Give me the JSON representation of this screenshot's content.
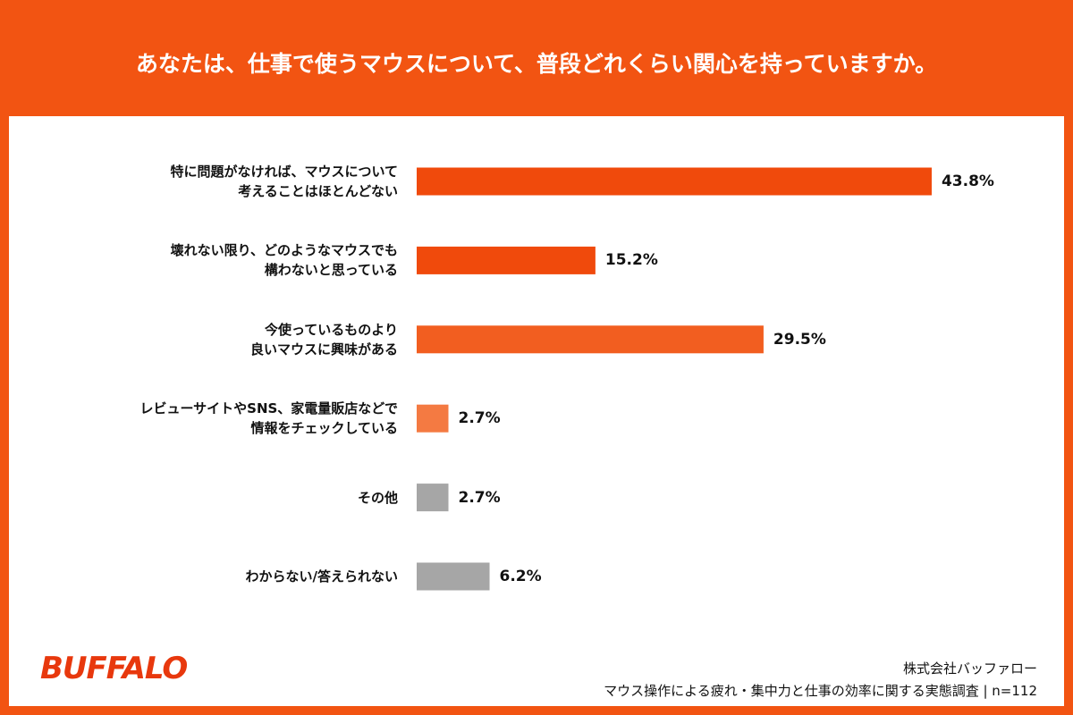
{
  "chart_data": {
    "type": "bar",
    "orientation": "horizontal",
    "title": "あなたは、仕事で使うマウスについて、普段どれくらい関心を持っていますか。",
    "categories": [
      "特に問題がなければ、マウスについて\n考えることはほとんどない",
      "壊れない限り、どのようなマウスでも\n構わないと思っている",
      "今使っているものより\n良いマウスに興味がある",
      "レビューサイトやSNS、家電量販店などで\n情報をチェックしている",
      "その他",
      "わからない/答えられない"
    ],
    "values": [
      43.8,
      15.2,
      29.5,
      2.7,
      2.7,
      6.2
    ],
    "value_labels": [
      "43.8%",
      "15.2%",
      "29.5%",
      "2.7%",
      "2.7%",
      "6.2%"
    ],
    "colors": [
      "#f04a0c",
      "#f04a0c",
      "#f25e20",
      "#f47a42",
      "#a6a6a6",
      "#a6a6a6"
    ]
  },
  "footer": {
    "logo": "BUFFALO",
    "company": "株式会社バッファロー",
    "note": "マウス操作による疲れ・集中力と仕事の効率に関する実態調査 | n=112"
  }
}
